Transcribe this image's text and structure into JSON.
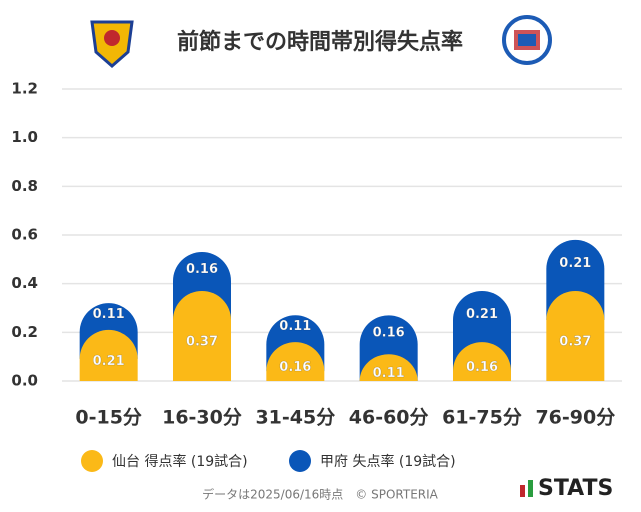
{
  "chart_data": {
    "type": "bar",
    "stacked": true,
    "title": "前節までの時間帯別得失点率",
    "categories": [
      "0-15分",
      "16-30分",
      "31-45分",
      "46-60分",
      "61-75分",
      "76-90分"
    ],
    "series": [
      {
        "name": "仙台 得点率 (19試合)",
        "color": "#fbb917",
        "values": [
          0.21,
          0.37,
          0.16,
          0.11,
          0.16,
          0.37
        ]
      },
      {
        "name": "甲府 失点率 (19試合)",
        "color": "#0a56b8",
        "values": [
          0.11,
          0.16,
          0.11,
          0.16,
          0.21,
          0.21
        ]
      }
    ],
    "ylim": [
      0,
      1.2
    ],
    "yticks": [
      {
        "value": 0,
        "label": "0.0"
      },
      0.2,
      0.4,
      0.6,
      0.8,
      {
        "value": 1,
        "label": "1.0"
      },
      1.2
    ],
    "grid": true,
    "footer": "データは2025/06/16時点　© SPORTERIA",
    "brand": "STATS"
  }
}
